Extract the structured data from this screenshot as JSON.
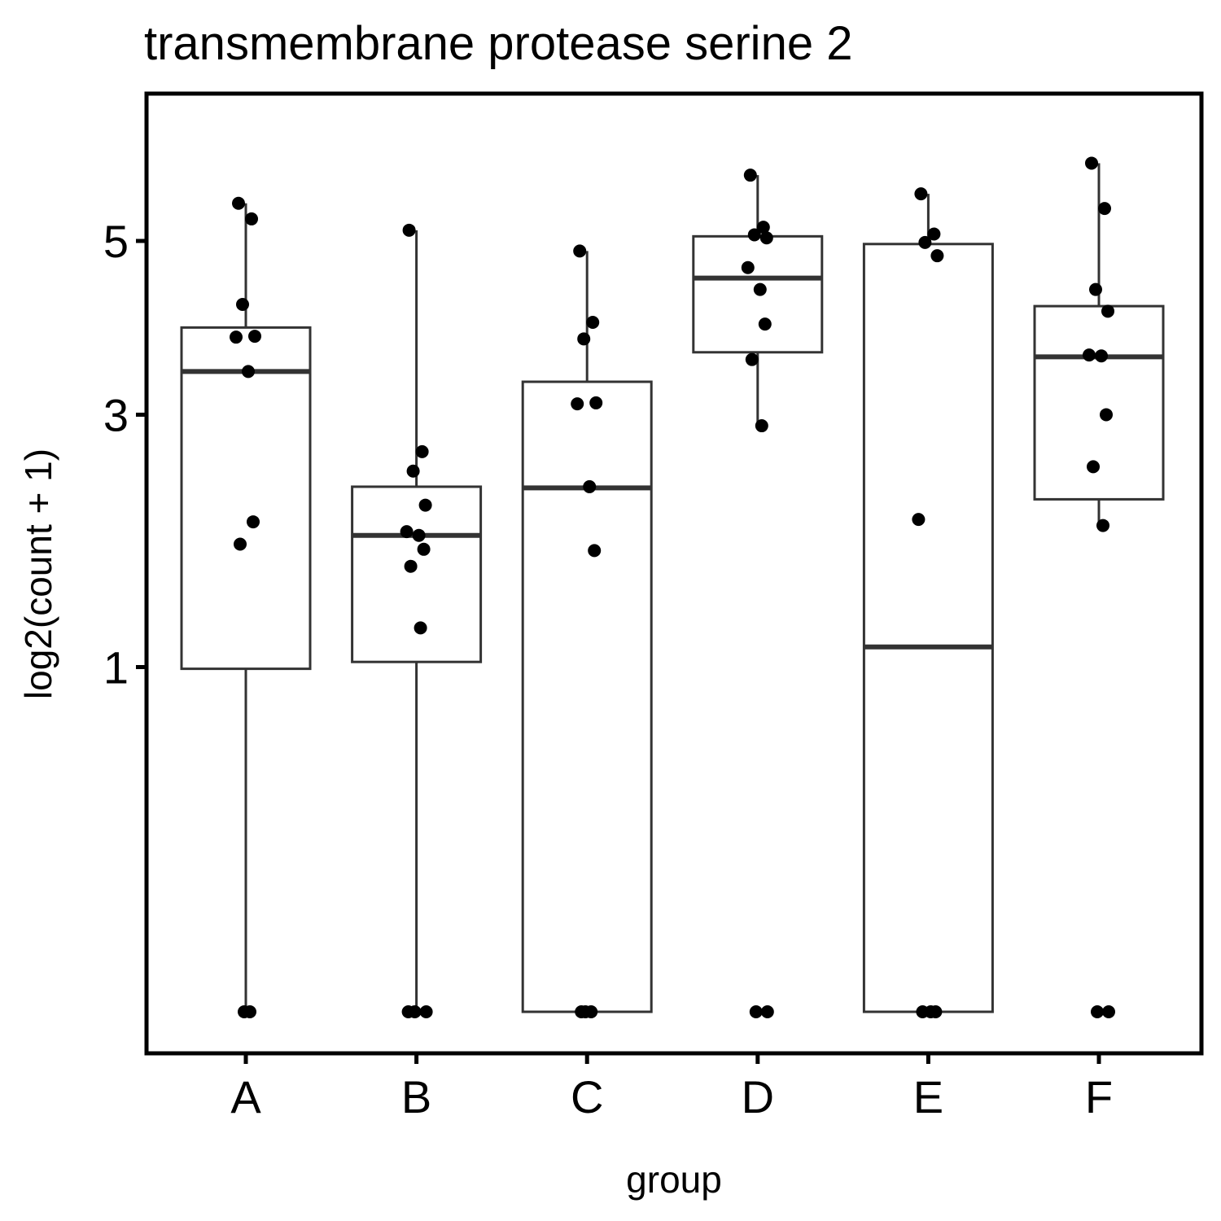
{
  "chart_data": {
    "type": "box",
    "title": "transmembrane protease serine 2",
    "xlabel": "group",
    "ylabel": "log2(count + 1)",
    "y_scale": "sqrt",
    "y_ticks": [
      1,
      3,
      5
    ],
    "ylim": [
      0,
      6.58
    ],
    "grid": false,
    "legend": "none",
    "colors": {
      "box_stroke": "#333333",
      "point": "#000000",
      "panel_border": "#000000"
    },
    "categories": [
      "A",
      "B",
      "C",
      "D",
      "E",
      "F"
    ],
    "boxes": [
      {
        "group": "A",
        "whisker_low": 0,
        "q1": 0.99,
        "median": 3.45,
        "q3": 3.94,
        "whisker_high": 5.5
      },
      {
        "group": "B",
        "whisker_low": 0,
        "q1": 1.03,
        "median": 1.91,
        "q3": 2.32,
        "whisker_high": 5.14
      },
      {
        "group": "C",
        "whisker_low": 0,
        "q1": 0,
        "median": 2.31,
        "q3": 3.34,
        "whisker_high": 4.87
      },
      {
        "group": "D",
        "whisker_low": 2.89,
        "q1": 3.66,
        "median": 4.53,
        "q3": 5.06,
        "whisker_high": 5.89
      },
      {
        "group": "E",
        "whisker_low": 0,
        "q1": 0,
        "median": 1.12,
        "q3": 4.96,
        "whisker_high": 5.63
      },
      {
        "group": "F",
        "whisker_low": 1.99,
        "q1": 2.21,
        "median": 3.61,
        "q3": 4.19,
        "whisker_high": 6.06
      }
    ],
    "points": [
      {
        "group": "A",
        "values": [
          5.5,
          5.29,
          4.21,
          3.84,
          3.83,
          3.45,
          2.02,
          1.84,
          0,
          0
        ]
      },
      {
        "group": "B",
        "values": [
          5.14,
          2.64,
          2.46,
          2.16,
          1.94,
          1.91,
          1.8,
          1.67,
          1.24,
          0,
          0,
          0
        ]
      },
      {
        "group": "C",
        "values": [
          4.87,
          4.0,
          3.81,
          3.12,
          3.11,
          2.32,
          1.79,
          0,
          0,
          0
        ]
      },
      {
        "group": "D",
        "values": [
          5.89,
          5.18,
          5.08,
          5.04,
          4.66,
          4.39,
          3.98,
          3.58,
          2.89,
          0,
          0
        ]
      },
      {
        "group": "E",
        "values": [
          5.63,
          5.09,
          4.98,
          4.81,
          2.04,
          0,
          0,
          0
        ]
      },
      {
        "group": "F",
        "values": [
          6.06,
          5.43,
          4.39,
          4.13,
          3.63,
          3.62,
          3.0,
          2.5,
          1.99,
          0,
          0
        ]
      }
    ]
  }
}
